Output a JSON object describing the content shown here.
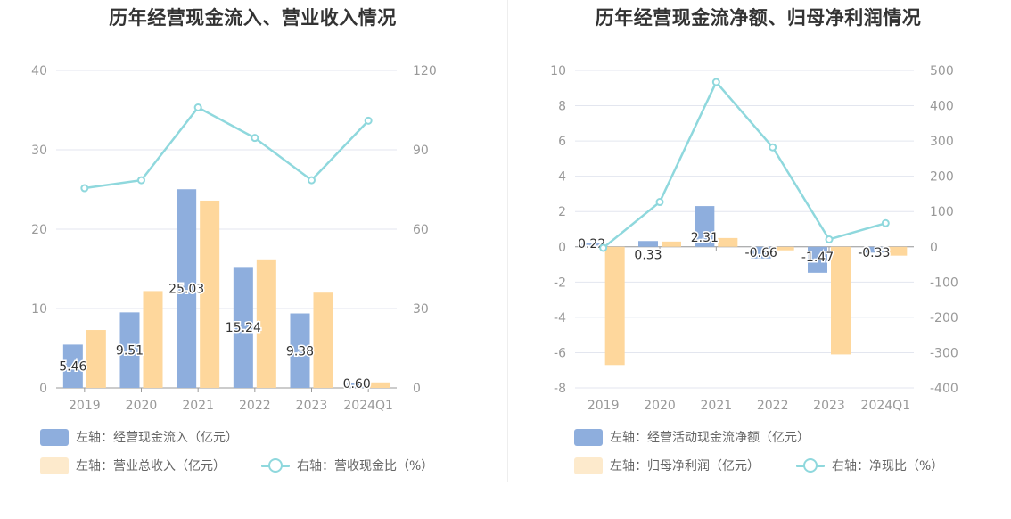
{
  "colors": {
    "bar_primary": "#8eaedd",
    "bar_secondary": "#fed79c",
    "line": "#8fd8dd",
    "legend_secondary_swatch": "#fdeacc",
    "axis_text": "#999999",
    "grid": "#e3e6ef"
  },
  "chart_data": [
    {
      "type": "bar",
      "title": "历年经营现金流入、营业收入情况",
      "categories": [
        "2019",
        "2020",
        "2021",
        "2022",
        "2023",
        "2024Q1"
      ],
      "y_left": {
        "ticks": [
          "0",
          "10",
          "20",
          "30",
          "40"
        ],
        "range": [
          0,
          40
        ]
      },
      "y_right": {
        "ticks": [
          "0",
          "30",
          "60",
          "90",
          "120"
        ],
        "range": [
          0,
          120
        ]
      },
      "grid": true,
      "legend_position": "bottom-left",
      "series": [
        {
          "name": "左轴：经营现金流入（亿元）",
          "type": "bar",
          "axis": "left",
          "values": [
            5.46,
            9.51,
            25.03,
            15.24,
            9.38,
            0.6
          ],
          "data_labels": [
            "5.46",
            "9.51",
            "25.03",
            "15.24",
            "9.38",
            "0.60"
          ]
        },
        {
          "name": "左轴：营业总收入（亿元）",
          "type": "bar",
          "axis": "left",
          "values": [
            7.3,
            12.2,
            23.6,
            16.2,
            12.0,
            0.7
          ]
        },
        {
          "name": "右轴：营收现金比（%）",
          "type": "line",
          "axis": "right",
          "values": [
            75.5,
            78.5,
            106,
            94.5,
            78.5,
            101
          ]
        }
      ]
    },
    {
      "type": "bar",
      "title": "历年经营现金流净额、归母净利润情况",
      "categories": [
        "2019",
        "2020",
        "2021",
        "2022",
        "2023",
        "2024Q1"
      ],
      "y_left": {
        "ticks": [
          "-8",
          "-6",
          "-4",
          "-2",
          "0",
          "2",
          "4",
          "6",
          "8",
          "10"
        ],
        "range": [
          -8,
          10
        ]
      },
      "y_right": {
        "ticks": [
          "-400",
          "-300",
          "-200",
          "-100",
          "0",
          "100",
          "200",
          "300",
          "400",
          "500"
        ],
        "range": [
          -400,
          500
        ]
      },
      "grid": true,
      "legend_position": "bottom-left",
      "series": [
        {
          "name": "左轴：经营活动现金流净额（亿元）",
          "type": "bar",
          "axis": "left",
          "values": [
            0.22,
            0.33,
            2.31,
            -0.66,
            -1.47,
            -0.33
          ],
          "data_labels": [
            "0.22",
            "0.33",
            "2.31",
            "-0.66",
            "-1.47",
            "-0.33"
          ]
        },
        {
          "name": "左轴：归母净利润（亿元）",
          "type": "bar",
          "axis": "left",
          "values": [
            -6.7,
            0.3,
            0.5,
            -0.2,
            -6.1,
            -0.5
          ]
        },
        {
          "name": "右轴：净现比（%）",
          "type": "line",
          "axis": "right",
          "values": [
            -3,
            127,
            467,
            282,
            21,
            67
          ]
        }
      ]
    }
  ]
}
